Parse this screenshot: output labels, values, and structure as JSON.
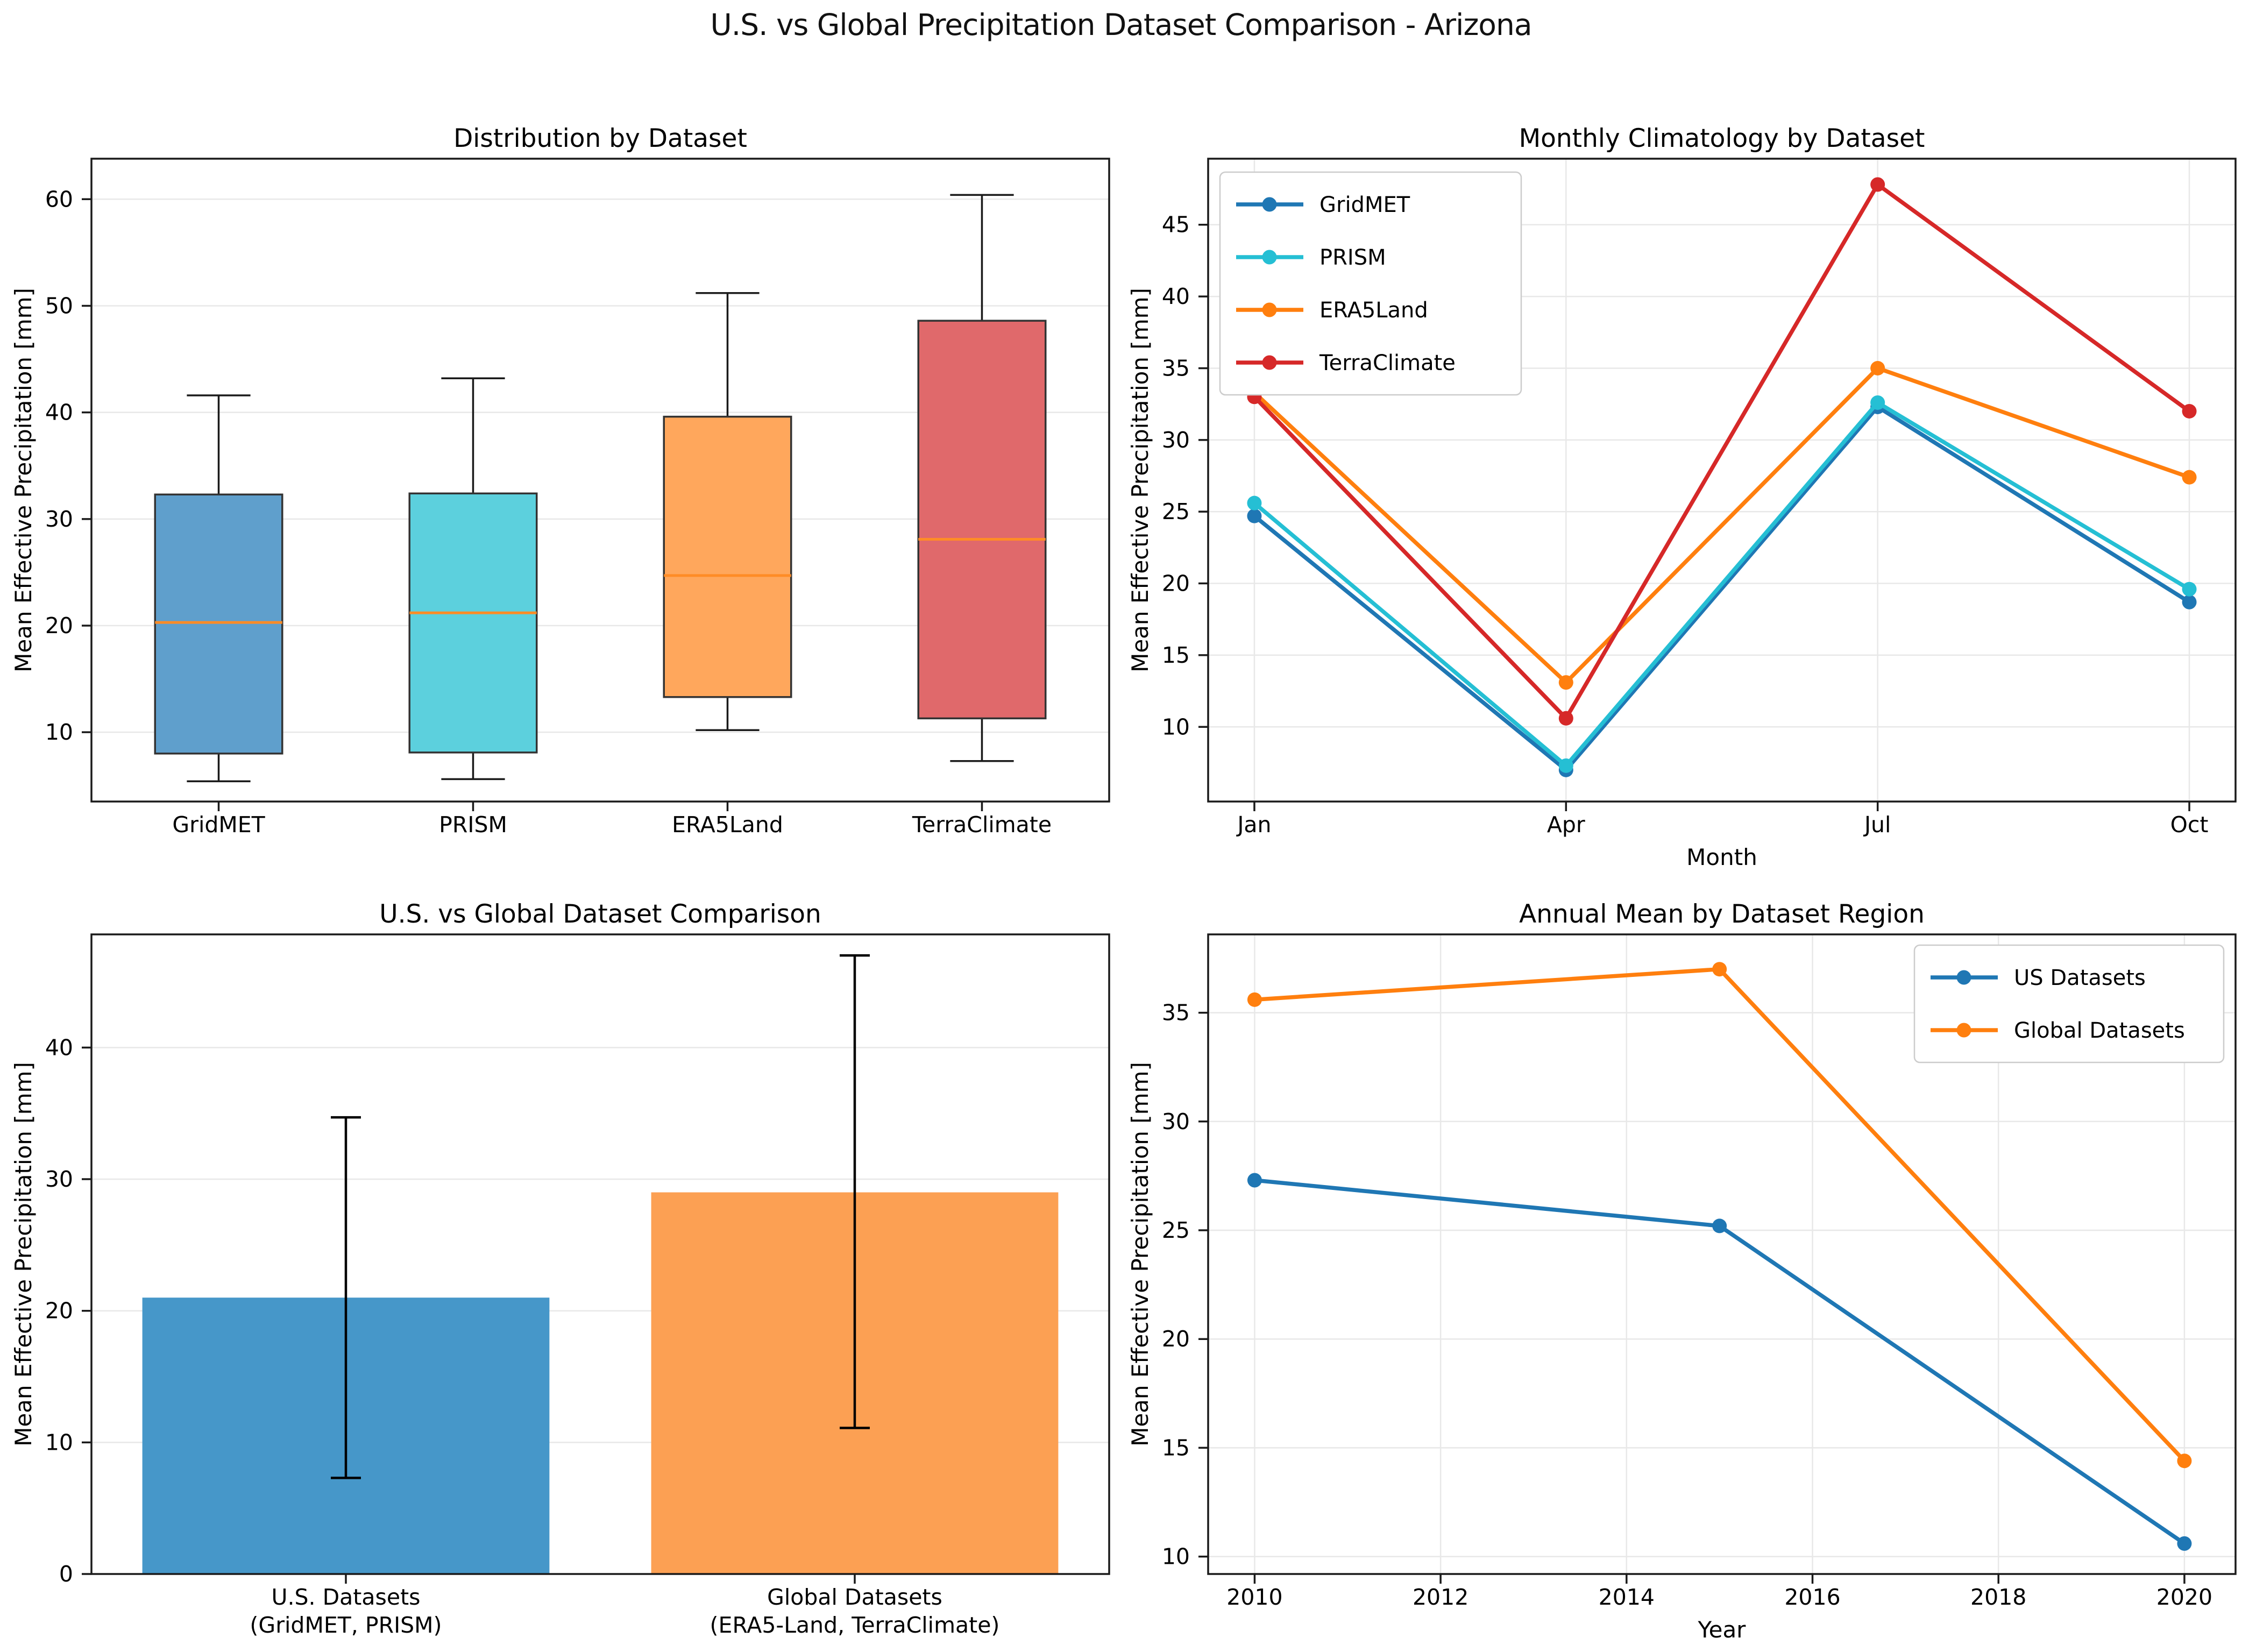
{
  "figure": {
    "title": "U.S. vs Global Precipitation Dataset Comparison - Arizona",
    "background": "#ffffff"
  },
  "chart_data": [
    {
      "id": "distribution",
      "type": "box",
      "title": "Distribution by Dataset",
      "ylabel": "Mean Effective Precipitation [mm]",
      "categories": [
        "GridMET",
        "PRISM",
        "ERA5Land",
        "TerraClimate"
      ],
      "yticks": [
        10,
        20,
        30,
        40,
        50,
        60
      ],
      "ylim": [
        3.5,
        63.8
      ],
      "grid": "horizontal",
      "median_color": "#ff8c26",
      "box_edge_color": "#333333",
      "whisker_color": "#1a1a1a",
      "boxes": [
        {
          "label": "GridMET",
          "whisker_low": 5.4,
          "q1": 8.0,
          "median": 20.3,
          "q3": 32.3,
          "whisker_high": 41.6,
          "fill": "#5f9fcc"
        },
        {
          "label": "PRISM",
          "whisker_low": 5.6,
          "q1": 8.1,
          "median": 21.2,
          "q3": 32.4,
          "whisker_high": 43.2,
          "fill": "#5cd0dd"
        },
        {
          "label": "ERA5Land",
          "whisker_low": 10.2,
          "q1": 13.3,
          "median": 24.7,
          "q3": 39.6,
          "whisker_high": 51.2,
          "fill": "#ffa75c"
        },
        {
          "label": "TerraClimate",
          "whisker_low": 7.3,
          "q1": 11.3,
          "median": 28.1,
          "q3": 48.6,
          "whisker_high": 60.4,
          "fill": "#e0696b"
        }
      ]
    },
    {
      "id": "climatology",
      "type": "line-category",
      "title": "Monthly Climatology by Dataset",
      "xlabel": "Month",
      "ylabel": "Mean Effective Precipitation [mm]",
      "categories": [
        "Jan",
        "Apr",
        "Jul",
        "Oct"
      ],
      "yticks": [
        10,
        15,
        20,
        25,
        30,
        35,
        40,
        45
      ],
      "ylim": [
        4.8,
        49.6
      ],
      "grid": "both",
      "legend_position": "top-left",
      "series": [
        {
          "name": "GridMET",
          "color": "#1f77b4",
          "values": [
            24.7,
            7.0,
            32.3,
            18.7
          ]
        },
        {
          "name": "PRISM",
          "color": "#25bfd4",
          "values": [
            25.6,
            7.3,
            32.6,
            19.6
          ]
        },
        {
          "name": "ERA5Land",
          "color": "#ff7f0e",
          "values": [
            33.3,
            13.1,
            35.0,
            27.4
          ]
        },
        {
          "name": "TerraClimate",
          "color": "#d62828",
          "values": [
            33.0,
            10.6,
            47.8,
            32.0
          ]
        }
      ]
    },
    {
      "id": "us-vs-global",
      "type": "bar",
      "title": "U.S. vs Global Dataset Comparison",
      "ylabel": "Mean Effective Precipitation [mm]",
      "categories": [
        [
          "U.S. Datasets",
          "(GridMET, PRISM)"
        ],
        [
          "Global Datasets",
          "(ERA5-Land, TerraClimate)"
        ]
      ],
      "yticks": [
        0,
        10,
        20,
        30,
        40
      ],
      "ylim": [
        0,
        48.6
      ],
      "grid": "horizontal",
      "error_color": "#000000",
      "bars": [
        {
          "value": 21.0,
          "error_low": 7.3,
          "error_high": 34.7,
          "fill": "#4697c9"
        },
        {
          "value": 29.0,
          "error_low": 11.1,
          "error_high": 47.0,
          "fill": "#fca053"
        }
      ]
    },
    {
      "id": "annual-mean",
      "type": "line-numeric",
      "title": "Annual Mean by Dataset Region",
      "xlabel": "Year",
      "ylabel": "Mean Effective Precipitation [mm]",
      "x": [
        2010,
        2015,
        2020
      ],
      "xticks": [
        2010,
        2012,
        2014,
        2016,
        2018,
        2020
      ],
      "xlim": [
        2009.5,
        2020.55
      ],
      "yticks": [
        10,
        15,
        20,
        25,
        30,
        35
      ],
      "ylim": [
        9.2,
        38.6
      ],
      "grid": "both",
      "legend_position": "top-right",
      "series": [
        {
          "name": "US Datasets",
          "color": "#1f77b4",
          "values": [
            27.3,
            25.2,
            10.6
          ]
        },
        {
          "name": "Global Datasets",
          "color": "#ff7f0e",
          "values": [
            35.6,
            37.0,
            14.4
          ]
        }
      ]
    }
  ]
}
